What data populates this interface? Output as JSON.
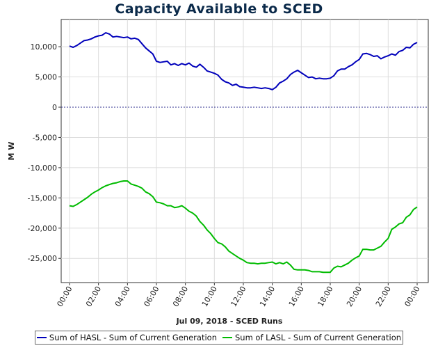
{
  "chart_data": {
    "type": "line",
    "title": "Capacity Available to SCED",
    "xlabel": "Jul 09, 2018 - SCED Runs",
    "ylabel": "M W",
    "ylim": [
      -29000,
      14500
    ],
    "yticks": [
      10000,
      5000,
      0,
      -5000,
      -10000,
      -15000,
      -20000,
      -25000
    ],
    "ytick_labels": [
      "10,000",
      "5,000",
      "0",
      "-5,000",
      "-10,000",
      "-15,000",
      "-20,000",
      "-25,000"
    ],
    "xlim": [
      0,
      24
    ],
    "xticks": [
      0,
      2,
      4,
      6,
      8,
      10,
      12,
      14,
      16,
      18,
      20,
      22,
      24
    ],
    "xtick_labels": [
      "00:00",
      "02:00",
      "04:00",
      "06:00",
      "08:00",
      "10:00",
      "12:00",
      "14:00",
      "16:00",
      "18:00",
      "20:00",
      "22:00",
      "00:00"
    ],
    "reference_line": 0,
    "series": [
      {
        "name": "Sum of HASL - Sum of Current Generation",
        "color": "#0000bb",
        "points": [
          [
            0,
            10100
          ],
          [
            0.25,
            9900
          ],
          [
            0.5,
            10200
          ],
          [
            0.75,
            10600
          ],
          [
            1,
            11000
          ],
          [
            1.25,
            11100
          ],
          [
            1.5,
            11300
          ],
          [
            1.75,
            11600
          ],
          [
            2,
            11800
          ],
          [
            2.25,
            11900
          ],
          [
            2.5,
            12300
          ],
          [
            2.75,
            12100
          ],
          [
            3,
            11600
          ],
          [
            3.25,
            11700
          ],
          [
            3.5,
            11600
          ],
          [
            3.75,
            11500
          ],
          [
            4,
            11600
          ],
          [
            4.25,
            11300
          ],
          [
            4.5,
            11400
          ],
          [
            4.75,
            11200
          ],
          [
            5,
            10500
          ],
          [
            5.25,
            9800
          ],
          [
            5.5,
            9300
          ],
          [
            5.75,
            8800
          ],
          [
            6,
            7600
          ],
          [
            6.25,
            7400
          ],
          [
            6.5,
            7500
          ],
          [
            6.75,
            7600
          ],
          [
            7,
            7000
          ],
          [
            7.25,
            7200
          ],
          [
            7.5,
            6900
          ],
          [
            7.75,
            7200
          ],
          [
            8,
            7000
          ],
          [
            8.25,
            7300
          ],
          [
            8.5,
            6800
          ],
          [
            8.75,
            6600
          ],
          [
            9,
            7100
          ],
          [
            9.25,
            6600
          ],
          [
            9.5,
            6000
          ],
          [
            9.75,
            5800
          ],
          [
            10,
            5600
          ],
          [
            10.25,
            5300
          ],
          [
            10.5,
            4600
          ],
          [
            10.75,
            4200
          ],
          [
            11,
            4000
          ],
          [
            11.25,
            3600
          ],
          [
            11.5,
            3800
          ],
          [
            11.75,
            3400
          ],
          [
            12,
            3300
          ],
          [
            12.25,
            3200
          ],
          [
            12.5,
            3200
          ],
          [
            12.75,
            3300
          ],
          [
            13,
            3200
          ],
          [
            13.25,
            3100
          ],
          [
            13.5,
            3200
          ],
          [
            13.75,
            3100
          ],
          [
            14,
            2900
          ],
          [
            14.25,
            3300
          ],
          [
            14.5,
            4000
          ],
          [
            14.75,
            4300
          ],
          [
            15,
            4700
          ],
          [
            15.25,
            5400
          ],
          [
            15.5,
            5800
          ],
          [
            15.75,
            6100
          ],
          [
            16,
            5700
          ],
          [
            16.25,
            5300
          ],
          [
            16.5,
            4900
          ],
          [
            16.75,
            5000
          ],
          [
            17,
            4700
          ],
          [
            17.25,
            4800
          ],
          [
            17.5,
            4700
          ],
          [
            17.75,
            4700
          ],
          [
            18,
            4800
          ],
          [
            18.25,
            5200
          ],
          [
            18.5,
            6000
          ],
          [
            18.75,
            6300
          ],
          [
            19,
            6300
          ],
          [
            19.25,
            6700
          ],
          [
            19.5,
            7000
          ],
          [
            19.75,
            7500
          ],
          [
            20,
            7900
          ],
          [
            20.25,
            8800
          ],
          [
            20.5,
            8900
          ],
          [
            20.75,
            8700
          ],
          [
            21,
            8400
          ],
          [
            21.25,
            8500
          ],
          [
            21.5,
            8000
          ],
          [
            21.75,
            8300
          ],
          [
            22,
            8500
          ],
          [
            22.25,
            8800
          ],
          [
            22.5,
            8600
          ],
          [
            22.75,
            9200
          ],
          [
            23,
            9400
          ],
          [
            23.25,
            9900
          ],
          [
            23.5,
            9800
          ],
          [
            23.75,
            10400
          ],
          [
            24,
            10700
          ]
        ]
      },
      {
        "name": "Sum of LASL - Sum of Current Generation",
        "color": "#00bb00",
        "points": [
          [
            0,
            -16300
          ],
          [
            0.25,
            -16400
          ],
          [
            0.5,
            -16100
          ],
          [
            0.75,
            -15700
          ],
          [
            1,
            -15300
          ],
          [
            1.25,
            -14900
          ],
          [
            1.5,
            -14400
          ],
          [
            1.75,
            -14000
          ],
          [
            2,
            -13700
          ],
          [
            2.25,
            -13300
          ],
          [
            2.5,
            -13000
          ],
          [
            2.75,
            -12800
          ],
          [
            3,
            -12600
          ],
          [
            3.25,
            -12500
          ],
          [
            3.5,
            -12300
          ],
          [
            3.75,
            -12200
          ],
          [
            4,
            -12200
          ],
          [
            4.25,
            -12700
          ],
          [
            4.5,
            -12900
          ],
          [
            4.75,
            -13100
          ],
          [
            5,
            -13400
          ],
          [
            5.25,
            -14000
          ],
          [
            5.5,
            -14300
          ],
          [
            5.75,
            -14800
          ],
          [
            6,
            -15700
          ],
          [
            6.25,
            -15800
          ],
          [
            6.5,
            -16000
          ],
          [
            6.75,
            -16300
          ],
          [
            7,
            -16300
          ],
          [
            7.25,
            -16600
          ],
          [
            7.5,
            -16500
          ],
          [
            7.75,
            -16300
          ],
          [
            8,
            -16700
          ],
          [
            8.25,
            -17200
          ],
          [
            8.5,
            -17500
          ],
          [
            8.75,
            -18000
          ],
          [
            9,
            -18900
          ],
          [
            9.25,
            -19500
          ],
          [
            9.5,
            -20300
          ],
          [
            9.75,
            -20900
          ],
          [
            10,
            -21700
          ],
          [
            10.25,
            -22400
          ],
          [
            10.5,
            -22600
          ],
          [
            10.75,
            -23100
          ],
          [
            11,
            -23800
          ],
          [
            11.25,
            -24200
          ],
          [
            11.5,
            -24600
          ],
          [
            11.75,
            -25000
          ],
          [
            12,
            -25300
          ],
          [
            12.25,
            -25700
          ],
          [
            12.5,
            -25800
          ],
          [
            12.75,
            -25800
          ],
          [
            13,
            -25900
          ],
          [
            13.25,
            -25800
          ],
          [
            13.5,
            -25800
          ],
          [
            13.75,
            -25700
          ],
          [
            14,
            -25600
          ],
          [
            14.25,
            -25900
          ],
          [
            14.5,
            -25700
          ],
          [
            14.75,
            -25900
          ],
          [
            15,
            -25600
          ],
          [
            15.25,
            -26100
          ],
          [
            15.5,
            -26800
          ],
          [
            15.75,
            -26900
          ],
          [
            16,
            -26900
          ],
          [
            16.25,
            -26900
          ],
          [
            16.5,
            -27000
          ],
          [
            16.75,
            -27200
          ],
          [
            17,
            -27200
          ],
          [
            17.25,
            -27200
          ],
          [
            17.5,
            -27300
          ],
          [
            17.75,
            -27300
          ],
          [
            18,
            -27300
          ],
          [
            18.25,
            -26600
          ],
          [
            18.5,
            -26300
          ],
          [
            18.75,
            -26400
          ],
          [
            19,
            -26100
          ],
          [
            19.25,
            -25800
          ],
          [
            19.5,
            -25300
          ],
          [
            19.75,
            -24900
          ],
          [
            20,
            -24600
          ],
          [
            20.25,
            -23500
          ],
          [
            20.5,
            -23500
          ],
          [
            20.75,
            -23600
          ],
          [
            21,
            -23600
          ],
          [
            21.25,
            -23300
          ],
          [
            21.5,
            -23000
          ],
          [
            21.75,
            -22300
          ],
          [
            22,
            -21700
          ],
          [
            22.25,
            -20200
          ],
          [
            22.5,
            -19800
          ],
          [
            22.75,
            -19300
          ],
          [
            23,
            -19100
          ],
          [
            23.25,
            -18200
          ],
          [
            23.5,
            -17800
          ],
          [
            23.75,
            -16900
          ],
          [
            24,
            -16500
          ]
        ]
      }
    ]
  }
}
